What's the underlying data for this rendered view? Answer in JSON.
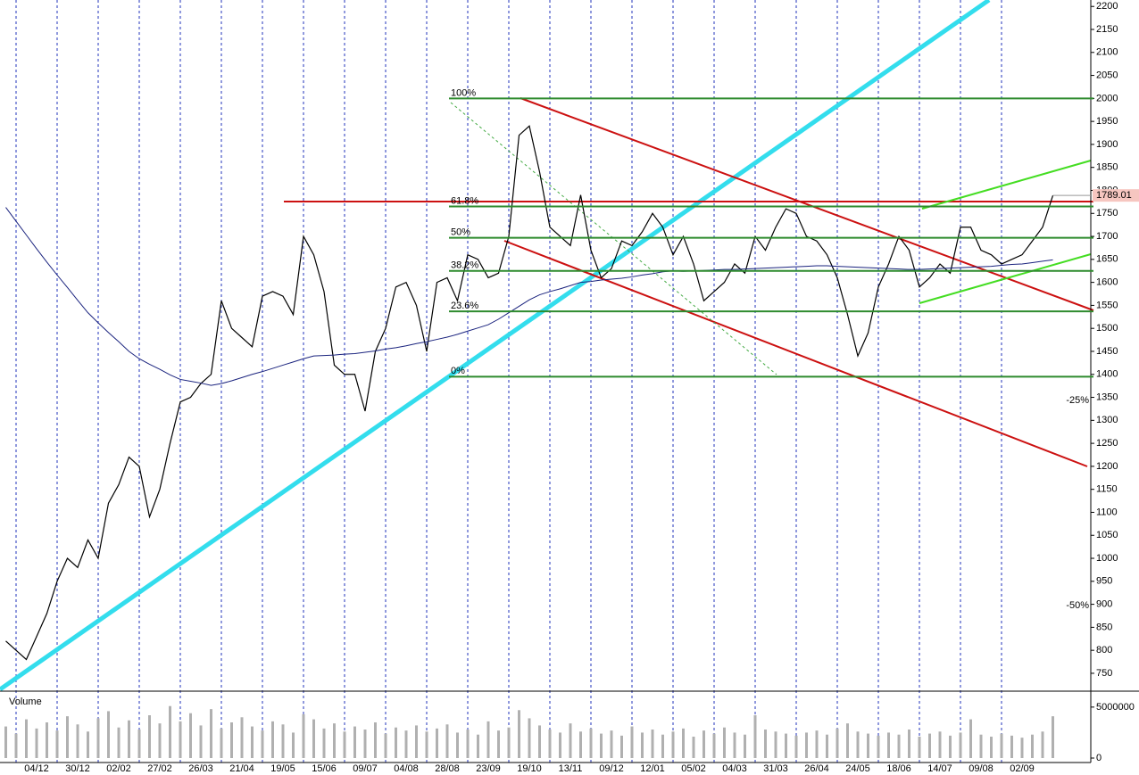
{
  "chart_data": {
    "type": "line",
    "categories": [
      null,
      null,
      null,
      "04/12",
      null,
      null,
      null,
      "30/12",
      null,
      null,
      null,
      "02/02",
      null,
      null,
      null,
      "27/02",
      null,
      null,
      null,
      "26/03",
      null,
      null,
      null,
      "21/04",
      null,
      null,
      null,
      "19/05",
      null,
      null,
      null,
      "15/06",
      null,
      null,
      null,
      "09/07",
      null,
      null,
      null,
      "04/08",
      null,
      null,
      null,
      "28/08",
      null,
      null,
      null,
      "23/09",
      null,
      null,
      null,
      "19/10",
      null,
      null,
      null,
      "13/11",
      null,
      null,
      null,
      "09/12",
      null,
      null,
      null,
      "12/01",
      null,
      null,
      null,
      "05/02",
      null,
      null,
      null,
      "04/03",
      null,
      null,
      null,
      "31/03",
      null,
      null,
      null,
      "26/04",
      null,
      null,
      null,
      "24/05",
      null,
      null,
      null,
      "18/06",
      null,
      null,
      null,
      "14/07",
      null,
      null,
      null,
      "09/08",
      null,
      null,
      null,
      "02/09",
      null,
      null,
      null
    ],
    "series": [
      {
        "color": "#000000",
        "values": [
          820,
          800,
          780,
          830,
          880,
          950,
          1000,
          980,
          1040,
          1000,
          1120,
          1160,
          1220,
          1200,
          1090,
          1150,
          1250,
          1340,
          1350,
          1380,
          1400,
          1560,
          1500,
          1480,
          1460,
          1570,
          1580,
          1570,
          1530,
          1700,
          1660,
          1580,
          1420,
          1400,
          1400,
          1320,
          1450,
          1500,
          1590,
          1600,
          1550,
          1450,
          1600,
          1610,
          1560,
          1660,
          1650,
          1610,
          1620,
          1700,
          1920,
          1940,
          1840,
          1720,
          1700,
          1680,
          1790,
          1670,
          1610,
          1630,
          1690,
          1680,
          1710,
          1750,
          1720,
          1660,
          1700,
          1640,
          1560,
          1580,
          1600,
          1640,
          1620,
          1700,
          1670,
          1720,
          1760,
          1750,
          1700,
          1690,
          1660,
          1610,
          1530,
          1440,
          1490,
          1590,
          1640,
          1700,
          1670,
          1590,
          1610,
          1640,
          1620,
          1720,
          1720,
          1670,
          1660,
          1640,
          1650,
          1660,
          1690,
          1720,
          1789.01
        ]
      },
      {
        "color": "#1a237e",
        "values": [
          1763,
          1733,
          1703,
          1673,
          1644,
          1616,
          1589,
          1561,
          1534,
          1512,
          1491,
          1471,
          1450,
          1434,
          1422,
          1411,
          1399,
          1389,
          1385,
          1381,
          1376,
          1380,
          1386,
          1393,
          1400,
          1406,
          1413,
          1420,
          1427,
          1434,
          1440,
          1441,
          1442,
          1444,
          1445,
          1448,
          1451,
          1455,
          1458,
          1462,
          1467,
          1471,
          1476,
          1481,
          1487,
          1494,
          1501,
          1508,
          1520,
          1534,
          1548,
          1562,
          1573,
          1580,
          1586,
          1593,
          1600,
          1602,
          1605,
          1607,
          1609,
          1612,
          1616,
          1619,
          1623,
          1625,
          1624,
          1625,
          1626,
          1627,
          1628,
          1628,
          1629,
          1630,
          1631,
          1632,
          1633,
          1634,
          1635,
          1636,
          1636,
          1635,
          1634,
          1633,
          1632,
          1631,
          1630,
          1629,
          1628,
          1628,
          1629,
          1630,
          1631,
          1632,
          1633,
          1634,
          1635,
          1637,
          1639,
          1640,
          1643,
          1646,
          1649
        ]
      }
    ],
    "ylim": [
      715,
      2214
    ],
    "yticks": [
      750,
      800,
      850,
      900,
      950,
      1000,
      1050,
      1100,
      1150,
      1200,
      1250,
      1300,
      1350,
      1400,
      1450,
      1500,
      1550,
      1600,
      1650,
      1700,
      1750,
      1800,
      1850,
      1900,
      1950,
      2000,
      2050,
      2100,
      2150,
      2200
    ],
    "fib_levels": [
      {
        "value": 2000,
        "label": "100%"
      },
      {
        "value": 1765,
        "label": "61.8%"
      },
      {
        "value": 1697,
        "label": "50%"
      },
      {
        "value": 1625,
        "label": "38.2%"
      },
      {
        "value": 1537,
        "label": "23.6%"
      },
      {
        "value": 1395,
        "label": "0%"
      }
    ],
    "fib_color": "#2e8b2e",
    "percent_marks": [
      {
        "value": 1343,
        "label": "-25%"
      },
      {
        "value": 897,
        "label": "-50%"
      }
    ],
    "volume": {
      "label": "Volume",
      "color": "#b0b0b0",
      "ylim": [
        0,
        6300000
      ],
      "yticks": [
        0,
        5000000
      ],
      "values": [
        3100000,
        2400000,
        3800000,
        2900000,
        3500000,
        2700000,
        4100000,
        3300000,
        2600000,
        3900000,
        4600000,
        3000000,
        3700000,
        2800000,
        4200000,
        3400000,
        5100000,
        3600000,
        4400000,
        3200000,
        4800000,
        2900000,
        3500000,
        4000000,
        3100000,
        2700000,
        3600000,
        3300000,
        2500000,
        4300000,
        3800000,
        2900000,
        3400000,
        2600000,
        3100000,
        2800000,
        3500000,
        2400000,
        3000000,
        2700000,
        3200000,
        2600000,
        2900000,
        3300000,
        2500000,
        2800000,
        2300000,
        3600000,
        2700000,
        3000000,
        4700000,
        3900000,
        3200000,
        2800000,
        2500000,
        3400000,
        2600000,
        2900000,
        2400000,
        2700000,
        2200000,
        3100000,
        2500000,
        2800000,
        2300000,
        2600000,
        2900000,
        2100000,
        2700000,
        2400000,
        3000000,
        2500000,
        2300000,
        4200000,
        2800000,
        2600000,
        2400000,
        2200000,
        2500000,
        2700000,
        2300000,
        2900000,
        3400000,
        2600000,
        2400000,
        2200000,
        2500000,
        2300000,
        2800000,
        2100000,
        2400000,
        2600000,
        2200000,
        2500000,
        3800000,
        2300000,
        2100000,
        2400000,
        2200000,
        2000000,
        2300000,
        2600000,
        4100000
      ]
    }
  }
}
